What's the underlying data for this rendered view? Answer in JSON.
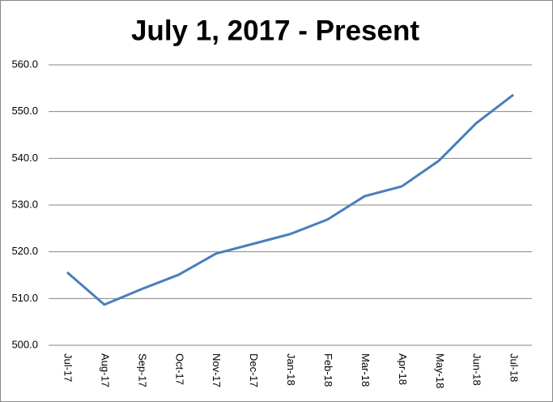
{
  "chart_data": {
    "type": "line",
    "title": "July 1, 2017 - Present",
    "categories": [
      "Jul-17",
      "Aug-17",
      "Sep-17",
      "Oct-17",
      "Nov-17",
      "Dec-17",
      "Jan-18",
      "Feb-18",
      "Mar-18",
      "Apr-18",
      "May-18",
      "Jun-18",
      "Jul-18"
    ],
    "values": [
      515.6,
      508.7,
      512.0,
      515.1,
      519.6,
      521.7,
      523.8,
      526.9,
      531.9,
      534.0,
      539.5,
      547.5,
      553.6
    ],
    "color": "#4a7ebb",
    "ylim": [
      500,
      560
    ],
    "yticks": [
      {
        "value": 500,
        "label": "500.0"
      },
      {
        "value": 510,
        "label": "510.0"
      },
      {
        "value": 520,
        "label": "520.0"
      },
      {
        "value": 530,
        "label": "530.0"
      },
      {
        "value": 540,
        "label": "540.0"
      },
      {
        "value": 550,
        "label": "550.0"
      },
      {
        "value": 560,
        "label": "560.0"
      }
    ],
    "grid": true
  }
}
